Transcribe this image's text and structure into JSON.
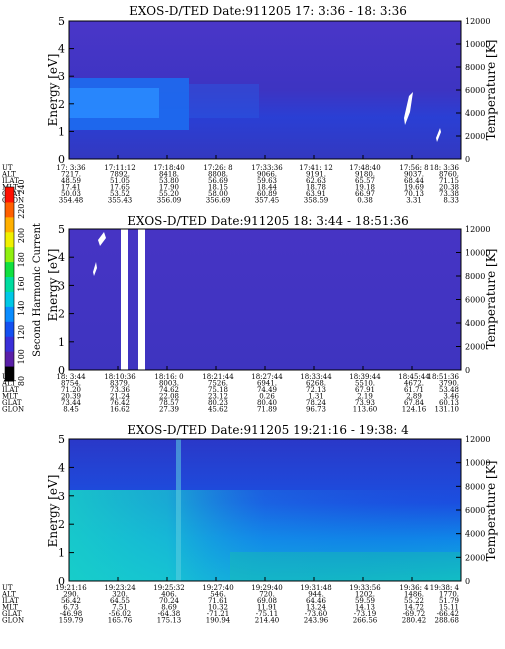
{
  "colorbar": {
    "label": "Second Harmonic Current",
    "ticks": [
      "80",
      "100",
      "120",
      "140",
      "160",
      "180",
      "200",
      "220",
      "240"
    ],
    "colors": [
      "#000000",
      "#5a1fa8",
      "#3a2fd8",
      "#1450f0",
      "#0a8cff",
      "#00c8e6",
      "#00dca0",
      "#10e040",
      "#90f010",
      "#f0f000",
      "#ffb000",
      "#ff6000",
      "#ff1000"
    ]
  },
  "chart_data": [
    {
      "type": "heatmap",
      "title": "EXOS-D/TED   Date:911205  17: 3:36 - 18: 3:36",
      "ylabel": "Energy [eV]",
      "y2label": "Temperature [K]",
      "ylim": [
        0,
        5
      ],
      "y2lim": [
        0,
        12000
      ],
      "yticks": [
        "0",
        "1",
        "2",
        "3",
        "4",
        "5"
      ],
      "y2ticks": [
        "0",
        "2000",
        "4000",
        "6000",
        "8000",
        "10000",
        "12000"
      ],
      "row_labels": [
        "UT",
        "ALT",
        "ILAT",
        "MLT",
        "GLAT",
        "GLON"
      ],
      "columns": [
        [
          "17: 3:36",
          "7217.",
          "48.59",
          "17.41",
          "50.03",
          "354.48"
        ],
        [
          "17:11:12",
          "7892.",
          "51.05",
          "17.65",
          "53.52",
          "355.43"
        ],
        [
          "17:18:40",
          "8418.",
          "53.80",
          "17.90",
          "55.20",
          "356.09"
        ],
        [
          "17:26: 8",
          "8808.",
          "56.69",
          "18.15",
          "58.00",
          "356.69"
        ],
        [
          "17:33:36",
          "9066.",
          "59.63",
          "18.44",
          "60.89",
          "357.45"
        ],
        [
          "17:41: 12",
          "9191.",
          "62.63",
          "18.78",
          "63.91",
          "358.59"
        ],
        [
          "17:48:40",
          "9180.",
          "65.57",
          "19.18",
          "66.97",
          "0.38"
        ],
        [
          "17:56: 8",
          "9037.",
          "68.44",
          "19.69",
          "70.13",
          "3.31"
        ],
        [
          "18: 3:36",
          "8760.",
          "71.15",
          "20.38",
          "73.38",
          "8.33"
        ]
      ]
    },
    {
      "type": "heatmap",
      "title": "EXOS-D/TED   Date:911205  18: 3:44 - 18:51:36",
      "ylabel": "Energy [eV]",
      "y2label": "Temperature [K]",
      "ylim": [
        0,
        5
      ],
      "y2lim": [
        0,
        12000
      ],
      "yticks": [
        "0",
        "1",
        "2",
        "3",
        "4",
        "5"
      ],
      "y2ticks": [
        "0",
        "2000",
        "4000",
        "6000",
        "8000",
        "10000",
        "12000"
      ],
      "row_labels": [
        "UT",
        "ALT",
        "ILAT",
        "MLT",
        "GLAT",
        "GLON"
      ],
      "columns": [
        [
          "18: 3:44",
          "8754.",
          "71.20",
          "20.39",
          "73.44",
          "8.45"
        ],
        [
          "18:10:36",
          "8379.",
          "73.36",
          "21.24",
          "76.42",
          "16.62"
        ],
        [
          "18:16: 0",
          "8003.",
          "74.62",
          "22.08",
          "78.57",
          "27.39"
        ],
        [
          "18:21:44",
          "7526.",
          "75.18",
          "23.12",
          "80.23",
          "45.62"
        ],
        [
          "18:27:44",
          "6941.",
          "74.49",
          "0.26",
          "80.40",
          "71.89"
        ],
        [
          "18:33:44",
          "6268.",
          "72.13",
          "1.31",
          "78.24",
          "96.73"
        ],
        [
          "18:39:44",
          "5510.",
          "67.91",
          "2.19",
          "73.93",
          "113.60"
        ],
        [
          "18:45:44",
          "4672.",
          "61.71",
          "2.89",
          "67.84",
          "124.16"
        ],
        [
          "18:51:36",
          "3790.",
          "53.48",
          "3.46",
          "60.13",
          "131.10"
        ]
      ]
    },
    {
      "type": "heatmap",
      "title": "EXOS-D/TED   Date:911205  19:21:16 - 19:38: 4",
      "ylabel": "Energy [eV]",
      "y2label": "Temperature [K]",
      "ylim": [
        0,
        5
      ],
      "y2lim": [
        0,
        12000
      ],
      "yticks": [
        "0",
        "1",
        "2",
        "3",
        "4",
        "5"
      ],
      "y2ticks": [
        "0",
        "2000",
        "4000",
        "6000",
        "8000",
        "10000",
        "12000"
      ],
      "row_labels": [
        "UT",
        "ALT",
        "ILAT",
        "MLT",
        "GLAT",
        "GLON"
      ],
      "columns": [
        [
          "19:21:16",
          "290.",
          "56.42",
          "6.73",
          "-46.98",
          "159.79"
        ],
        [
          "19:23:24",
          "320.",
          "64.55",
          "7.51",
          "-56.02",
          "165.76"
        ],
        [
          "19:25:32",
          "406.",
          "70.24",
          "8.69",
          "-64.38",
          "175.13"
        ],
        [
          "19:27:40",
          "546.",
          "71.61",
          "10.32",
          "-71.21",
          "190.94"
        ],
        [
          "19:29:40",
          "720.",
          "69.08",
          "11.91",
          "-75.11",
          "214.40"
        ],
        [
          "19:31:48",
          "944.",
          "64.46",
          "13.24",
          "-73.60",
          "243.96"
        ],
        [
          "19:33:56",
          "1202.",
          "59.59",
          "14.13",
          "-73.19",
          "266.56"
        ],
        [
          "19:36: 4",
          "1486.",
          "55.22",
          "14.72",
          "-69.72",
          "280.42"
        ],
        [
          "19:38: 4",
          "1770.",
          "51.79",
          "15.11",
          "-66.42",
          "288.68"
        ]
      ]
    }
  ]
}
